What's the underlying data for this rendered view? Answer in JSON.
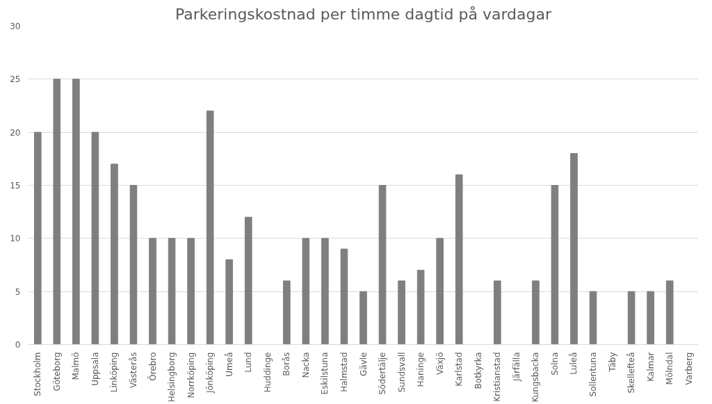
{
  "chart_data": {
    "type": "bar",
    "title": "Parkeringskostnad per timme dagtid på vardagar",
    "categories": [
      "Stockholm",
      "Göteborg",
      "Malmö",
      "Uppsala",
      "Linköping",
      "Västerås",
      "Örebro",
      "Helsingborg",
      "Norrköping",
      "Jönköping",
      "Umeå",
      "Lund",
      "Huddinge",
      "Borås",
      "Nacka",
      "Eskilstuna",
      "Halmstad",
      "Gävle",
      "Södertälje",
      "Sundsvall",
      "Haninge",
      "Växjö",
      "Karlstad",
      "Botkyrka",
      "Kristianstad",
      "Järfälla",
      "Kungsbacka",
      "Solna",
      "Luleå",
      "Sollentuna",
      "Täby",
      "Skellefteå",
      "Kalmar",
      "Mölndal",
      "Varberg"
    ],
    "values": [
      20,
      25,
      25,
      20,
      17,
      15,
      10,
      10,
      10,
      22,
      8,
      12,
      0,
      6,
      10,
      10,
      9,
      5,
      15,
      6,
      7,
      10,
      16,
      0,
      6,
      0,
      6,
      15,
      18,
      5,
      0,
      5,
      5,
      6,
      0
    ],
    "color": "#7f7f7f",
    "ylim": [
      0,
      30
    ],
    "yticks": [
      0,
      5,
      10,
      15,
      20,
      25,
      30
    ],
    "grid": "y"
  }
}
